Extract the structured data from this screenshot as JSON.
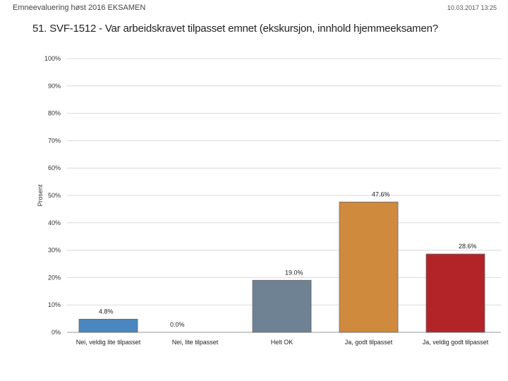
{
  "header": {
    "left": "Emneevaluering høst 2016 EKSAMEN",
    "right": "10.03.2017 13:25"
  },
  "chart_data": {
    "type": "bar",
    "title": "51. SVF-1512 - Var arbeidskravet tilpasset emnet (ekskursjon, innhold hjemmeeksamen?",
    "xlabel": "",
    "ylabel": "Prosent",
    "ylim": [
      0,
      100
    ],
    "yticks": [
      "0%",
      "10%",
      "20%",
      "30%",
      "40%",
      "50%",
      "60%",
      "70%",
      "80%",
      "90%",
      "100%"
    ],
    "categories": [
      "Nei, veldig lite tilpasset",
      "Nei, lite tilpasset",
      "Helt OK",
      "Ja, godt tilpasset",
      "Ja, veldig godt tilpasset"
    ],
    "values": [
      4.8,
      0.0,
      19.0,
      47.6,
      28.6
    ],
    "data_labels": [
      "4.8%",
      "0.0%",
      "19.0%",
      "47.6%",
      "28.6%"
    ],
    "colors": [
      "#4a87c0",
      "#4a87c0",
      "#6e8294",
      "#d08a3e",
      "#b22428"
    ],
    "grid": true
  }
}
